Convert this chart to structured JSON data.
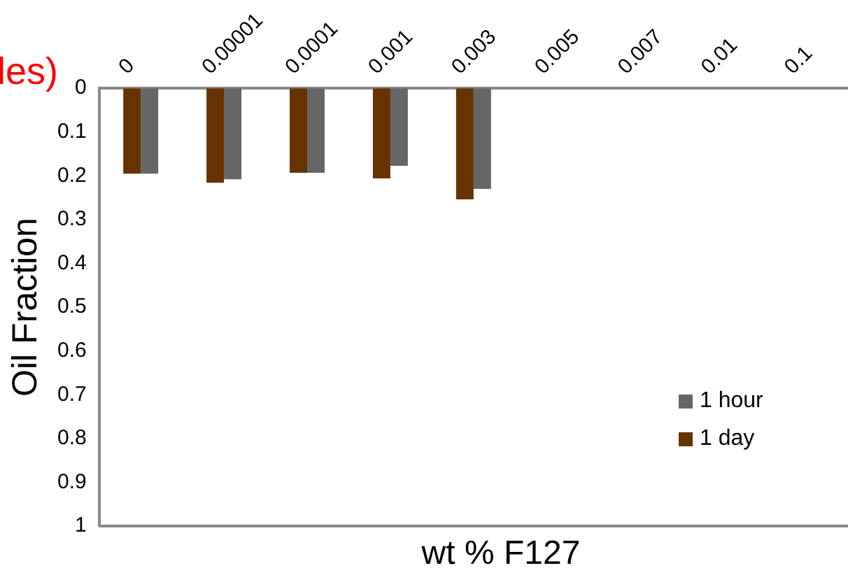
{
  "chart_data": {
    "type": "bar",
    "xlabel": "wt % F127",
    "ylabel": "Oil Fraction",
    "annotations": [
      "les)"
    ],
    "categories": [
      "0",
      "0.00001",
      "0.0001",
      "0.001",
      "0.003",
      "0.005",
      "0.007",
      "0.01",
      "0.1"
    ],
    "series": [
      {
        "name": "1 day",
        "color": "#663300",
        "values": [
          0.195,
          0.216,
          0.193,
          0.206,
          0.254,
          0,
          0,
          0,
          0
        ]
      },
      {
        "name": "1 hour",
        "color": "#666666",
        "values": [
          0.195,
          0.208,
          0.193,
          0.177,
          0.23,
          0,
          0,
          0,
          0
        ]
      }
    ],
    "ylim": [
      1,
      0
    ],
    "yticks": [
      0,
      0.1,
      0.2,
      0.3,
      0.4,
      0.5,
      0.6,
      0.7,
      0.8,
      0.9,
      1
    ],
    "grid": false,
    "legend": "bottom right"
  }
}
